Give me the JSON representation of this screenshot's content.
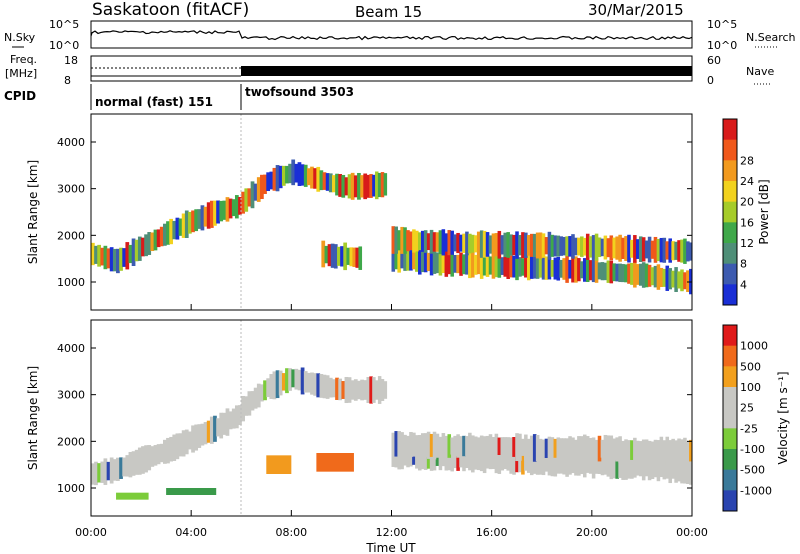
{
  "header": {
    "title": "Saskatoon (fitACF)",
    "beam": "Beam 15",
    "date": "30/Mar/2015"
  },
  "strip_panels": {
    "nsky_label": "N.Sky",
    "nsky_ticks": [
      "10^5",
      "10^0"
    ],
    "nsearch_label": "N.Search",
    "nsearch_ticks": [
      "10^5",
      "10^0"
    ],
    "freq_label": "Freq.",
    "freq_unit": "[MHz]",
    "freq_ticks": [
      "18",
      "8"
    ],
    "nave_label": "Nave",
    "nave_ticks": [
      "60",
      "0"
    ],
    "cpid_label": "CPID",
    "cpid_segments": [
      {
        "label": "normal (fast) 151",
        "start_hour": 0,
        "end_hour": 6
      },
      {
        "label": "twofsound 3503",
        "start_hour": 6,
        "end_hour": 24
      }
    ]
  },
  "chart_data": [
    {
      "type": "heatmap",
      "name": "power",
      "ylabel": "Slant Range [km]",
      "ylim": [
        400,
        4600
      ],
      "yticks": [
        "1000",
        "2000",
        "3000",
        "4000"
      ],
      "xlim": [
        0,
        24
      ],
      "colorbar_label": "Power [dB]",
      "colorbar_ticks": [
        "4",
        "8",
        "12",
        "16",
        "20",
        "24",
        "28"
      ],
      "colorbar_colors": [
        "#1a2fd6",
        "#3d5bb0",
        "#4f8f78",
        "#3fa84a",
        "#a6cc2a",
        "#f2d21e",
        "#f29a1e",
        "#f0581b",
        "#d81a1a"
      ],
      "echo_bands": [
        {
          "x": [
            0.0,
            1.0,
            2.0,
            3.0,
            4.0,
            5.0,
            6.0
          ],
          "y": [
            1600,
            1450,
            1750,
            2050,
            2300,
            2500,
            2650
          ]
        },
        {
          "x": [
            6.0,
            7.0,
            8.0,
            9.0,
            10.0,
            11.0,
            11.8
          ],
          "y": [
            2700,
            3150,
            3350,
            3200,
            3050,
            3050,
            3100
          ]
        },
        {
          "x": [
            9.2,
            9.7,
            10.2,
            10.8
          ],
          "y": [
            1600,
            1550,
            1550,
            1500
          ]
        },
        {
          "x": [
            12.0,
            14.0,
            16.0,
            18.0,
            20.0,
            22.0,
            24.0
          ],
          "y": [
            1500,
            1400,
            1350,
            1300,
            1250,
            1150,
            1000
          ]
        },
        {
          "x": [
            12.0,
            14.0,
            16.0,
            18.0,
            20.0,
            22.0,
            24.0
          ],
          "y": [
            1900,
            1850,
            1800,
            1780,
            1750,
            1700,
            1650
          ]
        }
      ]
    },
    {
      "type": "heatmap",
      "name": "velocity",
      "ylabel": "Slant Range [km]",
      "ylim": [
        400,
        4600
      ],
      "yticks": [
        "1000",
        "2000",
        "3000",
        "4000"
      ],
      "xlabel": "Time UT",
      "xlim": [
        0,
        24
      ],
      "xticks": [
        "00:00",
        "04:00",
        "08:00",
        "12:00",
        "16:00",
        "20:00",
        "00:00"
      ],
      "colorbar_label": "Velocity [m s⁻¹]",
      "colorbar_ticks": [
        "1000",
        "500",
        "100",
        "25",
        "-25",
        "-100",
        "-500",
        "-1000"
      ],
      "colorbar_colors": [
        "#2a44b0",
        "#3a7a9a",
        "#3a9a4a",
        "#7ccc3a",
        "#c8c8c4",
        "#c8c8c4",
        "#f2a01e",
        "#f06a1b",
        "#e01a1a"
      ],
      "echo_bands": [
        {
          "x": [
            0.0,
            1.0,
            2.0,
            3.0,
            4.0,
            5.0,
            6.0
          ],
          "y": [
            1300,
            1400,
            1600,
            1800,
            2050,
            2300,
            2600
          ]
        },
        {
          "x": [
            6.0,
            7.0,
            8.0,
            9.0,
            10.0,
            11.0,
            11.8
          ],
          "y": [
            2700,
            3150,
            3350,
            3200,
            3100,
            3100,
            3100
          ]
        },
        {
          "x": [
            12.0,
            14.0,
            16.0,
            18.0,
            20.0,
            22.0,
            24.0
          ],
          "y": [
            1700,
            1650,
            1600,
            1550,
            1500,
            1450,
            1350
          ]
        },
        {
          "x": [
            12.0,
            14.0,
            16.0,
            18.0,
            20.0,
            22.0,
            24.0
          ],
          "y": [
            1950,
            1900,
            1900,
            1850,
            1850,
            1800,
            1800
          ]
        }
      ],
      "patches": [
        {
          "x": [
            7.0,
            8.0
          ],
          "y": [
            1300,
            1700
          ],
          "color": "#f29a1e"
        },
        {
          "x": [
            9.0,
            10.5
          ],
          "y": [
            1350,
            1750
          ],
          "color": "#f06a1b"
        },
        {
          "x": [
            1.0,
            2.3
          ],
          "y": [
            750,
            900
          ],
          "color": "#7ccc3a"
        },
        {
          "x": [
            3.0,
            5.0
          ],
          "y": [
            850,
            1000
          ],
          "color": "#3a9a4a"
        }
      ]
    }
  ]
}
